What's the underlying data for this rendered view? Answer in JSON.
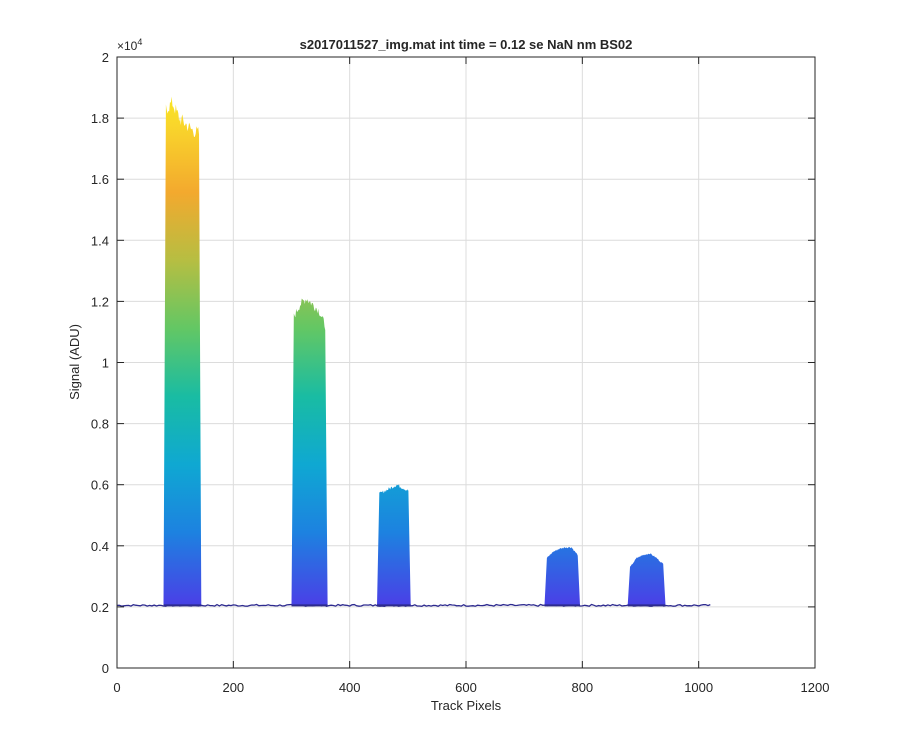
{
  "chart_data": {
    "type": "area",
    "title": "s2017011527_img.mat int time = 0.12 se  NaN nm BS02",
    "xlabel": "Track Pixels",
    "ylabel": "Signal (ADU)",
    "exponent_label": "×10",
    "exponent_power": "4",
    "xlim": [
      0,
      1200
    ],
    "ylim": [
      0,
      20000
    ],
    "x_ticks": [
      0,
      200,
      400,
      600,
      800,
      1000,
      1200
    ],
    "x_tick_labels": [
      "0",
      "200",
      "400",
      "600",
      "800",
      "1000",
      "1200"
    ],
    "y_ticks": [
      0,
      2000,
      4000,
      6000,
      8000,
      10000,
      12000,
      14000,
      16000,
      18000,
      20000
    ],
    "y_tick_labels": [
      "0",
      "0.2",
      "0.4",
      "0.6",
      "0.8",
      "1",
      "1.2",
      "1.4",
      "1.6",
      "1.8",
      "2"
    ],
    "grid": true,
    "baseline": 2050,
    "x_range": [
      0,
      1023
    ],
    "colormap": [
      "#3e26a8",
      "#4744e6",
      "#1d82e0",
      "#0fa8d2",
      "#19bca3",
      "#63c764",
      "#b6be42",
      "#f3a92e",
      "#f9d62b",
      "#f9fb15"
    ],
    "outline_color": "#2d2a8f",
    "peaks": [
      {
        "x_start": 80,
        "x_end": 145,
        "peak_values": [
          18300,
          18500,
          18000,
          17800,
          17600,
          17500
        ]
      },
      {
        "x_start": 300,
        "x_end": 362,
        "peak_values": [
          11500,
          11900,
          12100,
          11900,
          11700,
          11200
        ]
      },
      {
        "x_start": 447,
        "x_end": 505,
        "peak_values": [
          5700,
          5800,
          5900,
          6000,
          5900,
          5800
        ]
      },
      {
        "x_start": 735,
        "x_end": 796,
        "peak_values": [
          3600,
          3800,
          3900,
          3950,
          3950,
          3700
        ]
      },
      {
        "x_start": 878,
        "x_end": 943,
        "peak_values": [
          3300,
          3600,
          3700,
          3750,
          3600,
          3400
        ]
      }
    ]
  }
}
